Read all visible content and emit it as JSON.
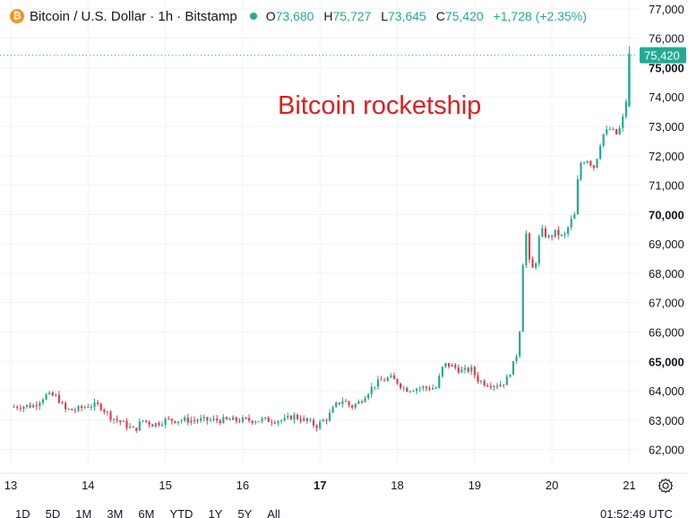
{
  "header": {
    "coin_glyph": "₿",
    "symbol": "Bitcoin / U.S. Dollar · 1h · Bitstamp",
    "ohlc": {
      "o_key": "O",
      "o": "73,680",
      "h_key": "H",
      "h": "75,727",
      "l_key": "L",
      "l": "73,645",
      "c_key": "C",
      "c": "75,420",
      "change": "+1,728 (+2.35%)"
    }
  },
  "annotation": "Bitcoin rocketship",
  "price_label": "75,420",
  "colors": {
    "up": "#22ab94",
    "down": "#f23645",
    "grid": "#f0f3fa",
    "text": "#131722"
  },
  "bottom": {
    "ranges": [
      "1D",
      "5D",
      "1M",
      "3M",
      "6M",
      "YTD",
      "1Y",
      "5Y",
      "All"
    ],
    "clock": "01:52:49 UTC"
  },
  "icons": {
    "settings": "settings-icon"
  },
  "chart_data": {
    "type": "candlestick",
    "title": "Bitcoin / U.S. Dollar · 1h · Bitstamp",
    "x_ticks": [
      "13",
      "14",
      "15",
      "16",
      "17",
      "18",
      "19",
      "20",
      "21"
    ],
    "x_bold": [
      "17"
    ],
    "y_ticks": [
      62000,
      63000,
      64000,
      65000,
      66000,
      67000,
      68000,
      69000,
      70000,
      71000,
      72000,
      73000,
      74000,
      75000,
      76000,
      77000
    ],
    "y_tick_labels": [
      "62,000",
      "63,000",
      "64,000",
      "65,000",
      "66,000",
      "67,000",
      "68,000",
      "69,000",
      "70,000",
      "71,000",
      "72,000",
      "73,000",
      "74,000",
      "75,000",
      "76,000",
      "77,000"
    ],
    "y_bold": [
      65000,
      70000,
      75000
    ],
    "ylim": [
      61500,
      77300
    ],
    "xlim": [
      13.0,
      21.25
    ],
    "last_price": 75420,
    "close_path": [
      [
        13.0,
        63450
      ],
      [
        13.3,
        63500
      ],
      [
        13.45,
        63850
      ],
      [
        13.6,
        63800
      ],
      [
        13.7,
        63350
      ],
      [
        13.85,
        63350
      ],
      [
        14.0,
        63500
      ],
      [
        14.15,
        63500
      ],
      [
        14.3,
        63100
      ],
      [
        14.45,
        62900
      ],
      [
        14.6,
        62650
      ],
      [
        14.7,
        63000
      ],
      [
        14.85,
        62850
      ],
      [
        15.0,
        63000
      ],
      [
        15.5,
        63000
      ],
      [
        16.0,
        63000
      ],
      [
        16.3,
        63000
      ],
      [
        16.55,
        63000
      ],
      [
        16.65,
        63150
      ],
      [
        16.8,
        63000
      ],
      [
        16.95,
        62800
      ],
      [
        17.1,
        63100
      ],
      [
        17.2,
        63500
      ],
      [
        17.3,
        63700
      ],
      [
        17.4,
        63450
      ],
      [
        17.5,
        63600
      ],
      [
        17.6,
        63900
      ],
      [
        17.7,
        64200
      ],
      [
        17.8,
        64350
      ],
      [
        17.9,
        64450
      ],
      [
        18.0,
        64300
      ],
      [
        18.1,
        64050
      ],
      [
        18.3,
        64100
      ],
      [
        18.5,
        64100
      ],
      [
        18.6,
        64900
      ],
      [
        18.7,
        64850
      ],
      [
        18.85,
        64650
      ],
      [
        18.95,
        64750
      ],
      [
        19.05,
        64350
      ],
      [
        19.15,
        64250
      ],
      [
        19.3,
        64200
      ],
      [
        19.4,
        64300
      ],
      [
        19.45,
        64600
      ],
      [
        19.5,
        64900
      ],
      [
        19.55,
        65300
      ],
      [
        19.58,
        65900
      ],
      [
        19.62,
        68200
      ],
      [
        19.66,
        69500
      ],
      [
        19.72,
        68100
      ],
      [
        19.78,
        68200
      ],
      [
        19.85,
        69500
      ],
      [
        19.95,
        69200
      ],
      [
        20.05,
        69400
      ],
      [
        20.15,
        69200
      ],
      [
        20.25,
        69800
      ],
      [
        20.3,
        70000
      ],
      [
        20.35,
        71700
      ],
      [
        20.45,
        71900
      ],
      [
        20.55,
        71600
      ],
      [
        20.65,
        72700
      ],
      [
        20.75,
        72900
      ],
      [
        20.85,
        72700
      ],
      [
        20.92,
        73300
      ],
      [
        20.96,
        73900
      ],
      [
        21.0,
        75420
      ]
    ]
  }
}
